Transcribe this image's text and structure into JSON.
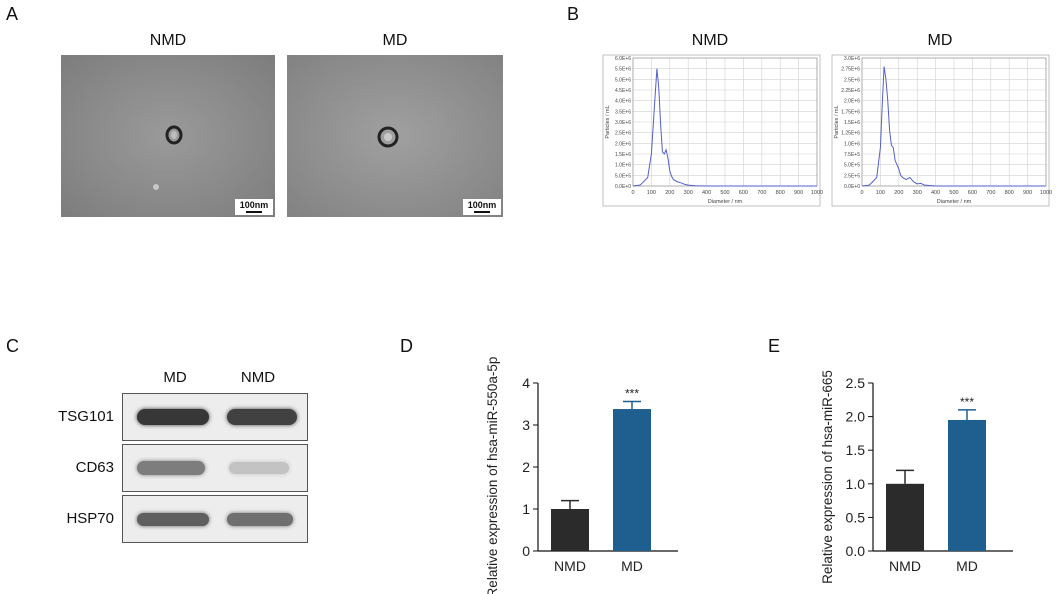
{
  "panelA": {
    "letter": "A",
    "images": [
      {
        "title": "NMD",
        "scale_label": "100nm"
      },
      {
        "title": "MD",
        "scale_label": "100nm"
      }
    ]
  },
  "panelB": {
    "letter": "B",
    "chart_data": [
      {
        "type": "line",
        "title": "NMD",
        "xlabel": "Diameter / nm",
        "ylabel": "Particles / mL",
        "xlim": [
          0,
          1000
        ],
        "ylim": [
          0,
          6000000
        ],
        "x_ticks": [
          "0",
          "100",
          "200",
          "300",
          "400",
          "500",
          "600",
          "700",
          "800",
          "900",
          "1000"
        ],
        "y_ticks": [
          "0.0E+0",
          "5.0E+5",
          "1.0E+6",
          "1.5E+6",
          "2.0E+6",
          "2.5E+6",
          "3.0E+6",
          "3.5E+6",
          "4.0E+6",
          "4.5E+6",
          "5.0E+6",
          "5.5E+6",
          "6.0E+6"
        ],
        "x": [
          0,
          40,
          80,
          100,
          120,
          130,
          140,
          150,
          160,
          170,
          180,
          190,
          200,
          210,
          220,
          240,
          260,
          280,
          300,
          340,
          400,
          500,
          600,
          700,
          800,
          900,
          1000
        ],
        "y": [
          0,
          50000,
          400000,
          1500000,
          4200000,
          5500000,
          4600000,
          2900000,
          1600000,
          1500000,
          1700000,
          1300000,
          700000,
          450000,
          300000,
          200000,
          150000,
          80000,
          40000,
          10000,
          0,
          0,
          0,
          0,
          0,
          0,
          0
        ],
        "grid": true
      },
      {
        "type": "line",
        "title": "MD",
        "xlabel": "Diameter / nm",
        "ylabel": "Particles / mL",
        "xlim": [
          0,
          1000
        ],
        "ylim": [
          0,
          3000000
        ],
        "x_ticks": [
          "0",
          "100",
          "200",
          "300",
          "400",
          "500",
          "600",
          "700",
          "800",
          "900",
          "1000"
        ],
        "y_ticks": [
          "0.0E+0",
          "2.5E+5",
          "5.0E+5",
          "7.5E+5",
          "1.0E+6",
          "1.25E+6",
          "1.5E+6",
          "1.75E+6",
          "2.0E+6",
          "2.25E+6",
          "2.5E+6",
          "2.75E+6",
          "3.0E+6"
        ],
        "x": [
          0,
          40,
          80,
          100,
          110,
          120,
          130,
          140,
          150,
          160,
          170,
          180,
          190,
          200,
          210,
          220,
          240,
          260,
          280,
          300,
          320,
          340,
          400,
          500,
          600,
          700,
          800,
          900,
          1000
        ],
        "y": [
          0,
          20000,
          200000,
          900000,
          1900000,
          2800000,
          2500000,
          2000000,
          1300000,
          950000,
          900000,
          600000,
          500000,
          400000,
          250000,
          200000,
          150000,
          200000,
          100000,
          50000,
          60000,
          20000,
          0,
          0,
          0,
          0,
          0,
          0,
          0
        ],
        "grid": true
      }
    ]
  },
  "panelC": {
    "letter": "C",
    "lanes": [
      "MD",
      "NMD"
    ],
    "rows": [
      {
        "label": "TSG101",
        "intensity": [
          0.9,
          0.85
        ]
      },
      {
        "label": "CD63",
        "intensity": [
          0.55,
          0.2
        ]
      },
      {
        "label": "HSP70",
        "intensity": [
          0.7,
          0.62
        ]
      }
    ]
  },
  "panelD": {
    "letter": "D",
    "chart_data": {
      "type": "bar",
      "categories": [
        "NMD",
        "MD"
      ],
      "values": [
        1.0,
        3.38
      ],
      "errors": [
        0.2,
        0.18
      ],
      "annotations": [
        "",
        "***"
      ],
      "ylabel": "Relative expression of hsa-miR-550a-5p",
      "ylim": [
        0,
        4
      ],
      "yticks": [
        "0",
        "1",
        "2",
        "3",
        "4"
      ],
      "colors": [
        "#2b2b2b",
        "#1f5f8f"
      ]
    }
  },
  "panelE": {
    "letter": "E",
    "chart_data": {
      "type": "bar",
      "categories": [
        "NMD",
        "MD"
      ],
      "values": [
        1.0,
        1.95
      ],
      "errors": [
        0.2,
        0.15
      ],
      "annotations": [
        "",
        "***"
      ],
      "ylabel": "Relative expression of hsa-miR-665",
      "ylim": [
        0,
        2.5
      ],
      "yticks": [
        "0.0",
        "0.5",
        "1.0",
        "1.5",
        "2.0",
        "2.5"
      ],
      "colors": [
        "#2b2b2b",
        "#1f5f8f"
      ]
    }
  }
}
